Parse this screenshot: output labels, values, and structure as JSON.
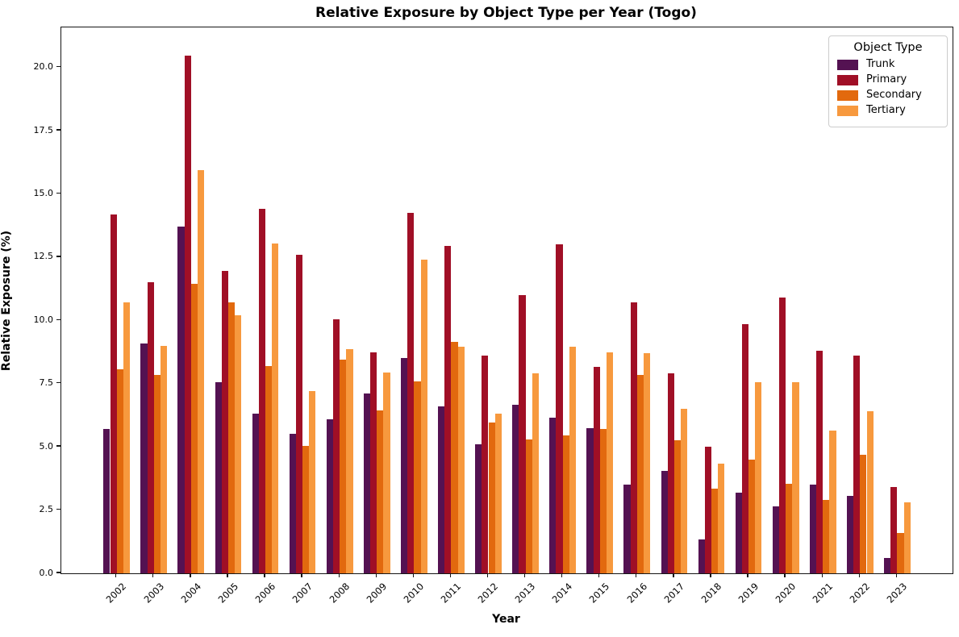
{
  "title": "Relative Exposure by Object Type per Year (Togo)",
  "chart_data": {
    "type": "bar",
    "title": "Relative Exposure by Object Type per Year (Togo)",
    "xlabel": "Year",
    "ylabel": "Relative Exposure (%)",
    "grid": false,
    "legend_title": "Object Type",
    "legend_position": "upper right",
    "ylim": [
      0,
      21.58
    ],
    "yticks": [
      "0.0",
      "2.5",
      "5.0",
      "7.5",
      "10.0",
      "12.5",
      "15.0",
      "17.5",
      "20.0"
    ],
    "ytick_values": [
      0,
      2.5,
      5,
      7.5,
      10,
      12.5,
      15,
      17.5,
      20
    ],
    "categories": [
      "2002",
      "2003",
      "2004",
      "2005",
      "2006",
      "2007",
      "2008",
      "2009",
      "2010",
      "2011",
      "2012",
      "2013",
      "2014",
      "2015",
      "2016",
      "2017",
      "2018",
      "2019",
      "2020",
      "2021",
      "2022",
      "2023"
    ],
    "series": [
      {
        "name": "Trunk",
        "color": "#541252",
        "values": [
          5.7,
          9.1,
          13.7,
          7.55,
          6.3,
          5.5,
          6.1,
          7.1,
          8.5,
          6.6,
          5.1,
          6.65,
          6.15,
          5.75,
          3.5,
          4.05,
          1.35,
          3.2,
          2.65,
          3.5,
          3.05,
          0.6
        ]
      },
      {
        "name": "Primary",
        "color": "#A00F26",
        "values": [
          14.2,
          11.5,
          20.45,
          11.95,
          14.4,
          12.6,
          10.05,
          8.75,
          14.25,
          12.95,
          8.6,
          11.0,
          13.0,
          8.15,
          10.7,
          7.9,
          5.0,
          9.85,
          10.9,
          8.8,
          8.6,
          3.4
        ]
      },
      {
        "name": "Secondary",
        "color": "#E2690E",
        "values": [
          8.05,
          7.85,
          11.45,
          10.7,
          8.2,
          5.05,
          8.45,
          6.45,
          7.6,
          9.15,
          5.95,
          5.3,
          5.45,
          5.7,
          7.85,
          5.25,
          3.35,
          4.5,
          3.55,
          2.9,
          4.7,
          1.6
        ]
      },
      {
        "name": "Tertiary",
        "color": "#F7993E",
        "values": [
          10.7,
          9.0,
          15.95,
          10.2,
          13.05,
          7.2,
          8.85,
          7.95,
          12.4,
          8.95,
          6.3,
          7.9,
          8.95,
          8.75,
          8.7,
          6.5,
          4.35,
          7.55,
          7.55,
          5.65,
          6.4,
          2.8
        ]
      }
    ]
  }
}
